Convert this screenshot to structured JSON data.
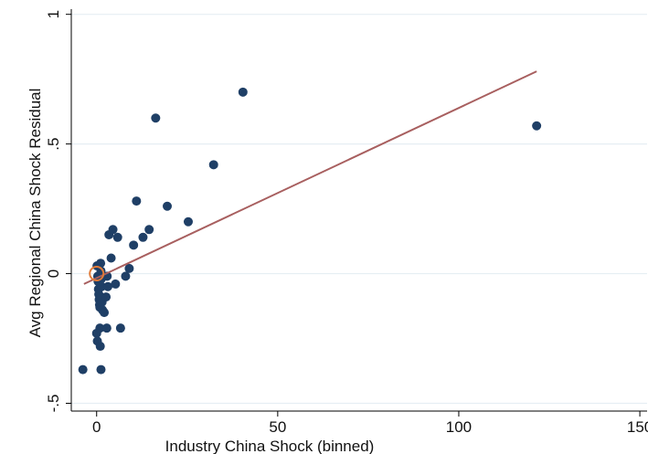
{
  "chart_data": {
    "type": "scatter",
    "title": "",
    "xlabel": "Industry China Shock (binned)",
    "ylabel": "Avg Regional China Shock Residual",
    "xlim": [
      -7,
      152
    ],
    "ylim": [
      -0.53,
      1.02
    ],
    "xticks": [
      0,
      50,
      100,
      150
    ],
    "xtick_labels": [
      "0",
      "50",
      "100",
      "150"
    ],
    "yticks": [
      -0.5,
      0,
      0.5,
      1
    ],
    "ytick_labels": [
      "-.5",
      "0",
      ".5",
      "1"
    ],
    "grid": "horizontal",
    "legend": "none",
    "colors": {
      "points": "#1f3f66",
      "fit_line": "#a85f5f",
      "highlight": "#e07b39",
      "grid": "#e6eef3"
    },
    "series": [
      {
        "values": [
          {
            "x": -3.8,
            "y": -0.37
          },
          {
            "x": 0.1,
            "y": 0.03
          },
          {
            "x": 0.3,
            "y": -0.01
          },
          {
            "x": 0.4,
            "y": -0.03
          },
          {
            "x": 0.5,
            "y": -0.06
          },
          {
            "x": 0.6,
            "y": -0.08
          },
          {
            "x": 0.7,
            "y": -0.1
          },
          {
            "x": 0.8,
            "y": -0.12
          },
          {
            "x": 0.9,
            "y": -0.13
          },
          {
            "x": 1.0,
            "y": -0.09
          },
          {
            "x": 1.1,
            "y": 0.04
          },
          {
            "x": 1.2,
            "y": 0.01
          },
          {
            "x": 1.3,
            "y": -0.02
          },
          {
            "x": 1.4,
            "y": -0.05
          },
          {
            "x": 1.5,
            "y": -0.11
          },
          {
            "x": 1.6,
            "y": -0.14
          },
          {
            "x": 0.0,
            "y": -0.23
          },
          {
            "x": 0.2,
            "y": -0.26
          },
          {
            "x": 0.9,
            "y": -0.21
          },
          {
            "x": 1.0,
            "y": -0.28
          },
          {
            "x": 1.2,
            "y": -0.37
          },
          {
            "x": 2.1,
            "y": -0.15
          },
          {
            "x": 2.6,
            "y": -0.09
          },
          {
            "x": 2.8,
            "y": -0.21
          },
          {
            "x": 3.1,
            "y": -0.05
          },
          {
            "x": 2.9,
            "y": -0.01
          },
          {
            "x": 3.4,
            "y": 0.15
          },
          {
            "x": 4.0,
            "y": 0.06
          },
          {
            "x": 4.5,
            "y": 0.17
          },
          {
            "x": 5.2,
            "y": -0.04
          },
          {
            "x": 5.8,
            "y": 0.14
          },
          {
            "x": 6.6,
            "y": -0.21
          },
          {
            "x": 8.0,
            "y": -0.01
          },
          {
            "x": 9.0,
            "y": 0.02
          },
          {
            "x": 10.2,
            "y": 0.11
          },
          {
            "x": 11.0,
            "y": 0.28
          },
          {
            "x": 12.8,
            "y": 0.14
          },
          {
            "x": 14.5,
            "y": 0.17
          },
          {
            "x": 16.3,
            "y": 0.6
          },
          {
            "x": 19.5,
            "y": 0.26
          },
          {
            "x": 25.3,
            "y": 0.2
          },
          {
            "x": 32.3,
            "y": 0.42
          },
          {
            "x": 40.4,
            "y": 0.7
          },
          {
            "x": 121.5,
            "y": 0.57
          }
        ]
      }
    ],
    "highlight_point": {
      "x": 0.0,
      "y": 0.0
    },
    "fit_line": {
      "x": [
        -3.5,
        121.5
      ],
      "y": [
        -0.04,
        0.78
      ]
    }
  }
}
